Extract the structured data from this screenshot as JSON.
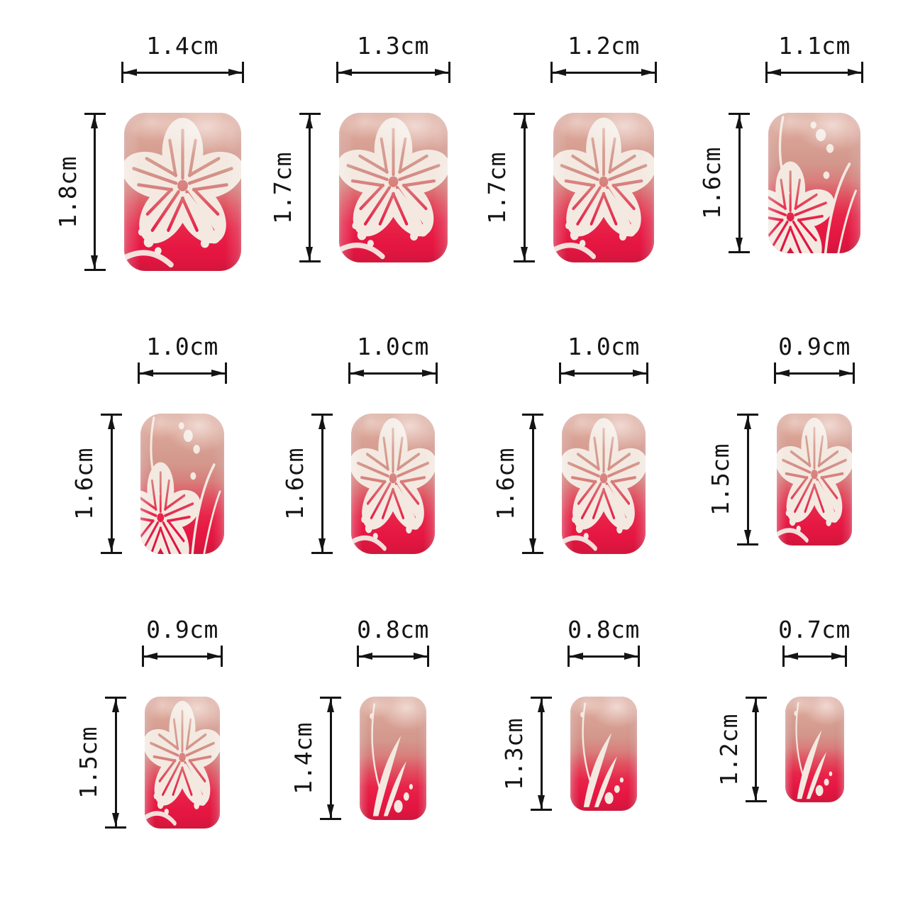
{
  "title": "press-on nail size chart",
  "unit": "cm",
  "colors": {
    "background": "#ffffff",
    "dimension_lines": "#141414",
    "nail_nude_top": "#e2b3a3",
    "nail_nude": "#d9a295",
    "nail_tip_red": "#e61742",
    "flower_white": "#f3e9e1"
  },
  "grid": {
    "rows": 3,
    "columns": 4
  },
  "nails": [
    {
      "position": "row1-col1",
      "width_label": "1.4cm",
      "height_label": "1.8cm",
      "width_cm": 1.4,
      "height_cm": 1.8,
      "design": "flower-full"
    },
    {
      "position": "row1-col2",
      "width_label": "1.3cm",
      "height_label": "1.7cm",
      "width_cm": 1.3,
      "height_cm": 1.7,
      "design": "flower-full"
    },
    {
      "position": "row1-col3",
      "width_label": "1.2cm",
      "height_label": "1.7cm",
      "width_cm": 1.2,
      "height_cm": 1.7,
      "design": "flower-full"
    },
    {
      "position": "row1-col4",
      "width_label": "1.1cm",
      "height_label": "1.6cm",
      "width_cm": 1.1,
      "height_cm": 1.6,
      "design": "flower-corner"
    },
    {
      "position": "row2-col1",
      "width_label": "1.0cm",
      "height_label": "1.6cm",
      "width_cm": 1.0,
      "height_cm": 1.6,
      "design": "flower-corner"
    },
    {
      "position": "row2-col2",
      "width_label": "1.0cm",
      "height_label": "1.6cm",
      "width_cm": 1.0,
      "height_cm": 1.6,
      "design": "flower-full"
    },
    {
      "position": "row2-col3",
      "width_label": "1.0cm",
      "height_label": "1.6cm",
      "width_cm": 1.0,
      "height_cm": 1.6,
      "design": "flower-full"
    },
    {
      "position": "row2-col4",
      "width_label": "0.9cm",
      "height_label": "1.5cm",
      "width_cm": 0.9,
      "height_cm": 1.5,
      "design": "flower-full"
    },
    {
      "position": "row3-col1",
      "width_label": "0.9cm",
      "height_label": "1.5cm",
      "width_cm": 0.9,
      "height_cm": 1.5,
      "design": "flower-full"
    },
    {
      "position": "row3-col2",
      "width_label": "0.8cm",
      "height_label": "1.4cm",
      "width_cm": 0.8,
      "height_cm": 1.4,
      "design": "grass"
    },
    {
      "position": "row3-col3",
      "width_label": "0.8cm",
      "height_label": "1.3cm",
      "width_cm": 0.8,
      "height_cm": 1.3,
      "design": "grass"
    },
    {
      "position": "row3-col4",
      "width_label": "0.7cm",
      "height_label": "1.2cm",
      "width_cm": 0.7,
      "height_cm": 1.2,
      "design": "grass"
    }
  ]
}
